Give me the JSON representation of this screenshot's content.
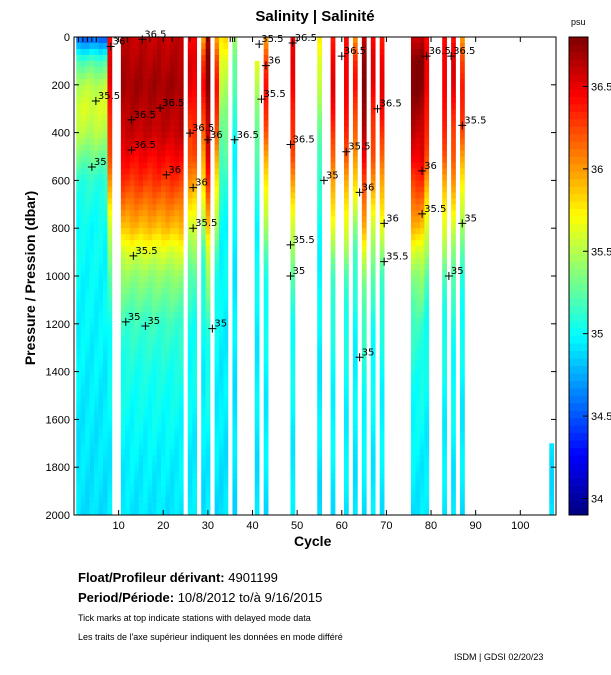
{
  "chart_data": {
    "type": "heatmap",
    "title": "Salinity | Salinité",
    "xlabel": "Cycle",
    "ylabel": "Pressure / Pression (dbar)",
    "xlim": [
      0,
      108
    ],
    "ylim": [
      2000,
      0
    ],
    "xticks": [
      10,
      20,
      30,
      40,
      50,
      60,
      70,
      80,
      90,
      100
    ],
    "yticks": [
      0,
      200,
      400,
      600,
      800,
      1000,
      1200,
      1400,
      1600,
      1800,
      2000
    ],
    "colorbar": {
      "label": "psu",
      "range": [
        33.9,
        36.8
      ],
      "ticks": [
        "34",
        "34.5",
        "35",
        "35.5",
        "36",
        "36.5"
      ],
      "colormap": "jet"
    },
    "pressure_levels": [
      0,
      100,
      200,
      300,
      400,
      500,
      600,
      700,
      800,
      900,
      1000,
      1200,
      1400,
      1600,
      1800,
      2000
    ],
    "profile_templates": {
      "A": [
        34.5,
        35.2,
        35.5,
        35.6,
        35.5,
        35.3,
        35.1,
        35.05,
        35.0,
        35.0,
        34.98,
        34.97,
        34.95,
        34.93,
        34.92,
        34.9
      ],
      "B": [
        36.6,
        36.65,
        36.7,
        36.65,
        36.6,
        36.45,
        36.3,
        36.1,
        35.9,
        35.6,
        35.4,
        35.15,
        35.05,
        35.0,
        34.95,
        34.92
      ],
      "C": [
        36.4,
        36.5,
        36.5,
        36.4,
        36.3,
        36.2,
        36.0,
        35.8,
        35.6,
        35.4,
        35.2,
        35.05,
        35.0,
        34.97,
        34.94,
        34.92
      ],
      "R": [
        36.6,
        36.8,
        36.8,
        36.7,
        36.6,
        36.5,
        36.3,
        36.1,
        35.9,
        35.6,
        35.4,
        35.15,
        35.05,
        35.0,
        34.95,
        34.92
      ],
      "E": [
        35.8,
        35.6,
        35.5,
        35.4,
        35.3,
        35.2,
        35.1,
        35.05,
        35.0,
        35.0,
        34.98,
        34.96,
        34.95,
        34.93,
        34.92,
        34.9
      ],
      "D": [
        35.5,
        35.3,
        35.2,
        35.1,
        35.05,
        35.0,
        35.0,
        34.98,
        34.97,
        34.96,
        34.95,
        34.94,
        34.93,
        34.92,
        34.91,
        34.9
      ],
      "O": [
        36.0,
        36.3,
        36.4,
        36.3,
        36.2,
        36.0,
        35.8,
        35.6,
        35.4,
        35.2,
        35.1,
        35.0,
        34.97,
        34.95,
        34.93,
        34.9
      ]
    },
    "profiles": [
      {
        "cycle": 1,
        "t": "A"
      },
      {
        "cycle": 2,
        "t": "A"
      },
      {
        "cycle": 3,
        "t": "A"
      },
      {
        "cycle": 4,
        "t": "A"
      },
      {
        "cycle": 5,
        "t": "A"
      },
      {
        "cycle": 6,
        "t": "A"
      },
      {
        "cycle": 7,
        "t": "A"
      },
      {
        "cycle": 8,
        "t": "C"
      },
      {
        "cycle": 11,
        "t": "B"
      },
      {
        "cycle": 12,
        "t": "B"
      },
      {
        "cycle": 13,
        "t": "B"
      },
      {
        "cycle": 14,
        "t": "B"
      },
      {
        "cycle": 15,
        "t": "B"
      },
      {
        "cycle": 16,
        "t": "B"
      },
      {
        "cycle": 17,
        "t": "B"
      },
      {
        "cycle": 18,
        "t": "B"
      },
      {
        "cycle": 19,
        "t": "B"
      },
      {
        "cycle": 20,
        "t": "B"
      },
      {
        "cycle": 21,
        "t": "B"
      },
      {
        "cycle": 22,
        "t": "B"
      },
      {
        "cycle": 23,
        "t": "B"
      },
      {
        "cycle": 24,
        "t": "B"
      },
      {
        "cycle": 26,
        "t": "C"
      },
      {
        "cycle": 27,
        "t": "C"
      },
      {
        "cycle": 29,
        "t": "O"
      },
      {
        "cycle": 30,
        "t": "R"
      },
      {
        "cycle": 32,
        "t": "O"
      },
      {
        "cycle": 33,
        "t": "E"
      },
      {
        "cycle": 34,
        "t": "E"
      },
      {
        "cycle": 36,
        "t": "D"
      },
      {
        "cycle": 41,
        "t": "E",
        "pmin": 100
      },
      {
        "cycle": 43,
        "t": "O"
      },
      {
        "cycle": 49,
        "t": "C"
      },
      {
        "cycle": 55,
        "t": "E"
      },
      {
        "cycle": 58,
        "t": "C"
      },
      {
        "cycle": 61,
        "t": "C"
      },
      {
        "cycle": 63,
        "t": "O"
      },
      {
        "cycle": 65,
        "t": "R"
      },
      {
        "cycle": 67,
        "t": "C"
      },
      {
        "cycle": 69,
        "t": "C"
      },
      {
        "cycle": 76,
        "t": "R"
      },
      {
        "cycle": 77,
        "t": "R"
      },
      {
        "cycle": 78,
        "t": "R"
      },
      {
        "cycle": 79,
        "t": "C"
      },
      {
        "cycle": 83,
        "t": "C"
      },
      {
        "cycle": 85,
        "t": "C"
      },
      {
        "cycle": 87,
        "t": "O"
      },
      {
        "cycle": 107,
        "t": "D",
        "pmin": 1700
      }
    ],
    "contour_labels": [
      {
        "text": "36.5",
        "cycle": 15.3,
        "p": 10
      },
      {
        "text": "36",
        "cycle": 8.2,
        "p": 40
      },
      {
        "text": "35.5",
        "cycle": 4.9,
        "p": 268
      },
      {
        "text": "35",
        "cycle": 4,
        "p": 544
      },
      {
        "text": "36.5",
        "cycle": 19.3,
        "p": 297
      },
      {
        "text": "36.5",
        "cycle": 12.9,
        "p": 347
      },
      {
        "text": "36.5",
        "cycle": 12.9,
        "p": 473
      },
      {
        "text": "36",
        "cycle": 20.7,
        "p": 577
      },
      {
        "text": "35.5",
        "cycle": 13.3,
        "p": 916
      },
      {
        "text": "35",
        "cycle": 11.6,
        "p": 1192
      },
      {
        "text": "35",
        "cycle": 16,
        "p": 1209
      },
      {
        "text": "36.5",
        "cycle": 26,
        "p": 402
      },
      {
        "text": "36",
        "cycle": 26.7,
        "p": 630
      },
      {
        "text": "35.5",
        "cycle": 26.7,
        "p": 800
      },
      {
        "text": "36",
        "cycle": 30,
        "p": 430
      },
      {
        "text": "35",
        "cycle": 31,
        "p": 1220
      },
      {
        "text": "36.5",
        "cycle": 36,
        "p": 430
      },
      {
        "text": "35.5",
        "cycle": 41.5,
        "p": 30
      },
      {
        "text": "36",
        "cycle": 43,
        "p": 120
      },
      {
        "text": "35.5",
        "cycle": 42,
        "p": 260
      },
      {
        "text": "36.5",
        "cycle": 49,
        "p": 25
      },
      {
        "text": "36.5",
        "cycle": 48.5,
        "p": 450
      },
      {
        "text": "35.5",
        "cycle": 48.5,
        "p": 870
      },
      {
        "text": "35",
        "cycle": 48.5,
        "p": 1000
      },
      {
        "text": "35",
        "cycle": 56,
        "p": 600
      },
      {
        "text": "36.5",
        "cycle": 60,
        "p": 80
      },
      {
        "text": "35.5",
        "cycle": 61,
        "p": 480
      },
      {
        "text": "36",
        "cycle": 64,
        "p": 650
      },
      {
        "text": "35",
        "cycle": 64,
        "p": 1340
      },
      {
        "text": "36.5",
        "cycle": 68,
        "p": 300
      },
      {
        "text": "36",
        "cycle": 69.5,
        "p": 780
      },
      {
        "text": "35.5",
        "cycle": 69.5,
        "p": 940
      },
      {
        "text": "36.5",
        "cycle": 79,
        "p": 80
      },
      {
        "text": "36",
        "cycle": 78,
        "p": 560
      },
      {
        "text": "35.5",
        "cycle": 78,
        "p": 740
      },
      {
        "text": "36.5",
        "cycle": 84.5,
        "p": 80
      },
      {
        "text": "35.5",
        "cycle": 87,
        "p": 370
      },
      {
        "text": "35",
        "cycle": 87,
        "p": 780
      },
      {
        "text": "35",
        "cycle": 84,
        "p": 1000
      }
    ],
    "delayed_mode_ticks": [
      1,
      2,
      3,
      4,
      5,
      12,
      17,
      22,
      26,
      35,
      35.5,
      36
    ]
  },
  "info": {
    "float_label": "Float/Profileur dérivant:",
    "float_id": "4901199",
    "period_label": "Period/Période:",
    "period_start": "10/8/2012",
    "period_sep": "to/à",
    "period_end": "9/16/2015",
    "note_en": "Tick marks at top indicate stations with delayed mode data",
    "note_fr": "Les traits de l'axe supérieur indiquent les données en mode différé",
    "credit": "ISDM | GDSI 02/20/23"
  }
}
